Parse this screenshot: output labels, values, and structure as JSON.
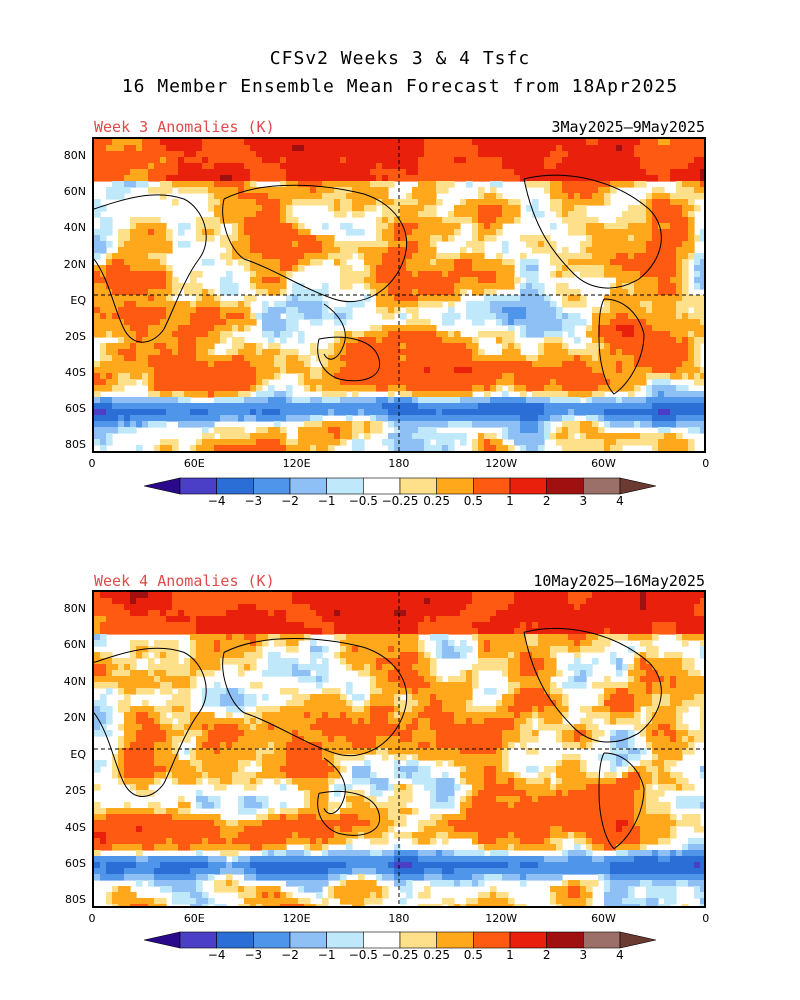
{
  "title": {
    "line1": "CFSv2 Weeks 3 & 4 Tsfc",
    "line2": "16 Member Ensemble Mean Forecast from 18Apr2025"
  },
  "panels": [
    {
      "label": "Week 3 Anomalies (K)",
      "dates": "3May2025–9May2025"
    },
    {
      "label": "Week 4 Anomalies (K)",
      "dates": "10May2025–16May2025"
    }
  ],
  "axes": {
    "lat_labels": [
      "80N",
      "60N",
      "40N",
      "20N",
      "EQ",
      "20S",
      "40S",
      "60S",
      "80S"
    ],
    "lon_labels": [
      "0",
      "60E",
      "120E",
      "180",
      "120W",
      "60W",
      "0"
    ]
  },
  "colorbar": {
    "colors": [
      "#2a0a8a",
      "#4b3fc7",
      "#2b6fd6",
      "#4f95ea",
      "#8ec0f5",
      "#bfe8fb",
      "#ffffff",
      "#ffe08a",
      "#ffa81c",
      "#ff5a12",
      "#e8200c",
      "#a01010",
      "#9a7068",
      "#6b3a30"
    ],
    "ticks": [
      "−4",
      "−3",
      "−2",
      "−1",
      "−0.5",
      "−0.25",
      "0.25",
      "0.5",
      "1",
      "2",
      "3",
      "4"
    ]
  }
}
